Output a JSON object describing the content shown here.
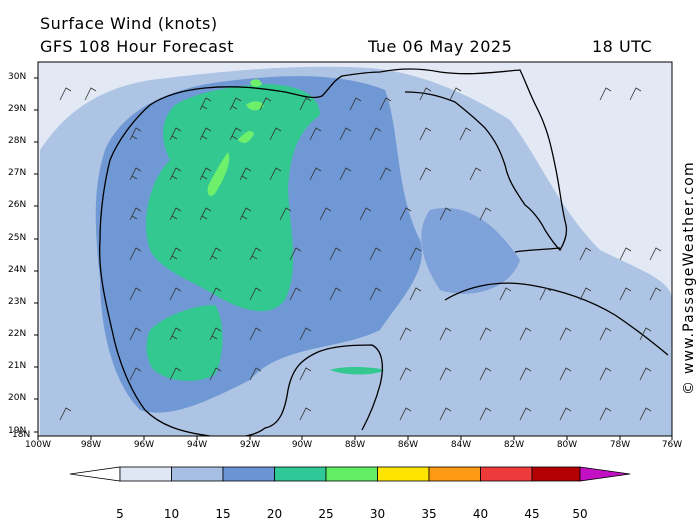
{
  "header": {
    "title": "Surface Wind (knots)",
    "subtitle": "GFS 108 Hour Forecast",
    "valid_date": "Tue 06 May 2025",
    "valid_time": "18 UTC"
  },
  "credit": "© www.PassageWeather.com",
  "axes": {
    "lat_labels": [
      "30N",
      "29N",
      "28N",
      "27N",
      "26N",
      "25N",
      "24N",
      "23N",
      "22N",
      "21N",
      "20N",
      "19N",
      "18N"
    ],
    "lon_labels": [
      "100W",
      "98W",
      "96W",
      "94W",
      "92W",
      "90W",
      "88W",
      "86W",
      "84W",
      "82W",
      "80W",
      "78W",
      "76W"
    ]
  },
  "colorbar": {
    "labels": [
      "5",
      "10",
      "15",
      "20",
      "25",
      "30",
      "35",
      "40",
      "45",
      "50"
    ],
    "colors": [
      "#f4f6fb",
      "#dfe6f4",
      "#a6bfe2",
      "#6b94d4",
      "#2ec996",
      "#62ee64",
      "#ffe400",
      "#ff9a14",
      "#ee3a3a",
      "#b30000",
      "#c310c4"
    ]
  },
  "map_colors": {
    "land": "#e3e9f4",
    "sea_light": "#aec4e4",
    "sea_medium": "#6f98d5",
    "sea_strong": "#34c891",
    "sea_max": "#6ef06c",
    "coastline": "#000000"
  }
}
